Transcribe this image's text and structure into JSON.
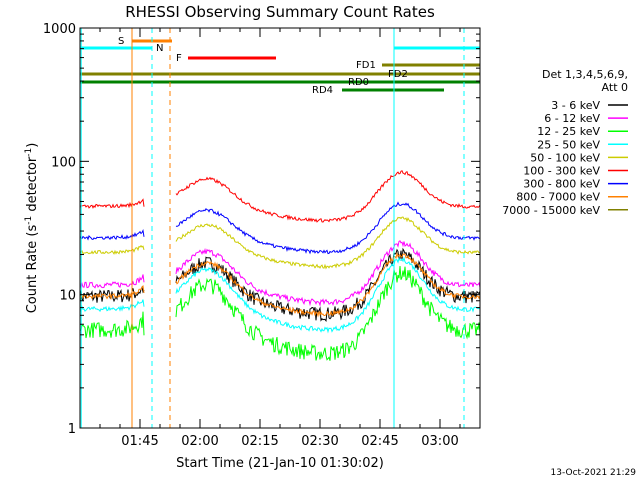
{
  "chart_data": {
    "type": "line",
    "title": "RHESSI Observing Summary Count Rates",
    "xlabel": "Start Time (21-Jan-10 01:30:02)",
    "ylabel_main": "Count Rate (s",
    "ylabel_sup": "-1",
    "ylabel_mid": " detector",
    "ylabel_sup2": "-1",
    "ylabel_end": ")",
    "y_scale": "log",
    "ylim": [
      1,
      1000
    ],
    "xlim_minutes": [
      0,
      100
    ],
    "x_ticks": [
      {
        "t": 15,
        "label": "01:45"
      },
      {
        "t": 30,
        "label": "02:00"
      },
      {
        "t": 45,
        "label": "02:15"
      },
      {
        "t": 60,
        "label": "02:30"
      },
      {
        "t": 75,
        "label": "02:45"
      },
      {
        "t": 90,
        "label": "03:00"
      }
    ],
    "y_ticks": [
      {
        "v": 1,
        "label": "1"
      },
      {
        "v": 10,
        "label": "10"
      },
      {
        "v": 100,
        "label": "100"
      },
      {
        "v": 1000,
        "label": "1000"
      }
    ],
    "legend_header": [
      "Det 1,3,4,5,6,9,",
      "Att 0"
    ],
    "timestamp": "13-Oct-2021 21:29",
    "series": [
      {
        "name": "3 - 6 keV",
        "color": "#000000",
        "base": 14,
        "amp": 0.55,
        "noise": 0.12
      },
      {
        "name": "6 - 12 keV",
        "color": "#ff00ff",
        "base": 17,
        "amp": 0.55,
        "noise": 0.05
      },
      {
        "name": "12 - 25 keV",
        "color": "#00ff00",
        "base": 9,
        "amp": 0.75,
        "noise": 0.14
      },
      {
        "name": "25 - 50 keV",
        "color": "#00ffff",
        "base": 12,
        "amp": 0.65,
        "noise": 0.04
      },
      {
        "name": "50 - 100 keV",
        "color": "#cccc00",
        "base": 28,
        "amp": 0.45,
        "noise": 0.03
      },
      {
        "name": "100 - 300 keV",
        "color": "#ff0000",
        "base": 62,
        "amp": 0.45,
        "noise": 0.03
      },
      {
        "name": "300 - 800 keV",
        "color": "#0000ff",
        "base": 36,
        "amp": 0.45,
        "noise": 0.03
      },
      {
        "name": "800 - 7000 keV",
        "color": "#ff8000",
        "base": 14,
        "amp": 0.55,
        "noise": 0.04
      },
      {
        "name": "7000 - 15000 keV",
        "color": "#808000",
        "base": 1,
        "amp": 0,
        "noise": 0
      }
    ],
    "annotations": [
      {
        "label": "S",
        "color": "#ff8000"
      },
      {
        "label": "N",
        "color": "#00ffff"
      },
      {
        "label": "F",
        "color": "#ff0000"
      },
      {
        "label": "FD1",
        "color": "#808000"
      },
      {
        "label": "FD2",
        "color": "#808000"
      },
      {
        "label": "RD0",
        "color": "#008000"
      },
      {
        "label": "RD4",
        "color": "#008000"
      }
    ]
  }
}
